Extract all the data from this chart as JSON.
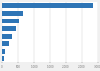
{
  "values": [
    2839,
    670,
    530,
    430,
    310,
    210,
    90,
    60
  ],
  "bar_color": "#2e75b6",
  "background_color": "#f0f0f0",
  "plot_background": "#ffffff",
  "xlim": [
    0,
    3000
  ],
  "xtick_values": [
    0,
    500,
    1000,
    1500,
    2000,
    2500,
    3000
  ],
  "bar_height": 0.65,
  "grid_color": "#cccccc"
}
